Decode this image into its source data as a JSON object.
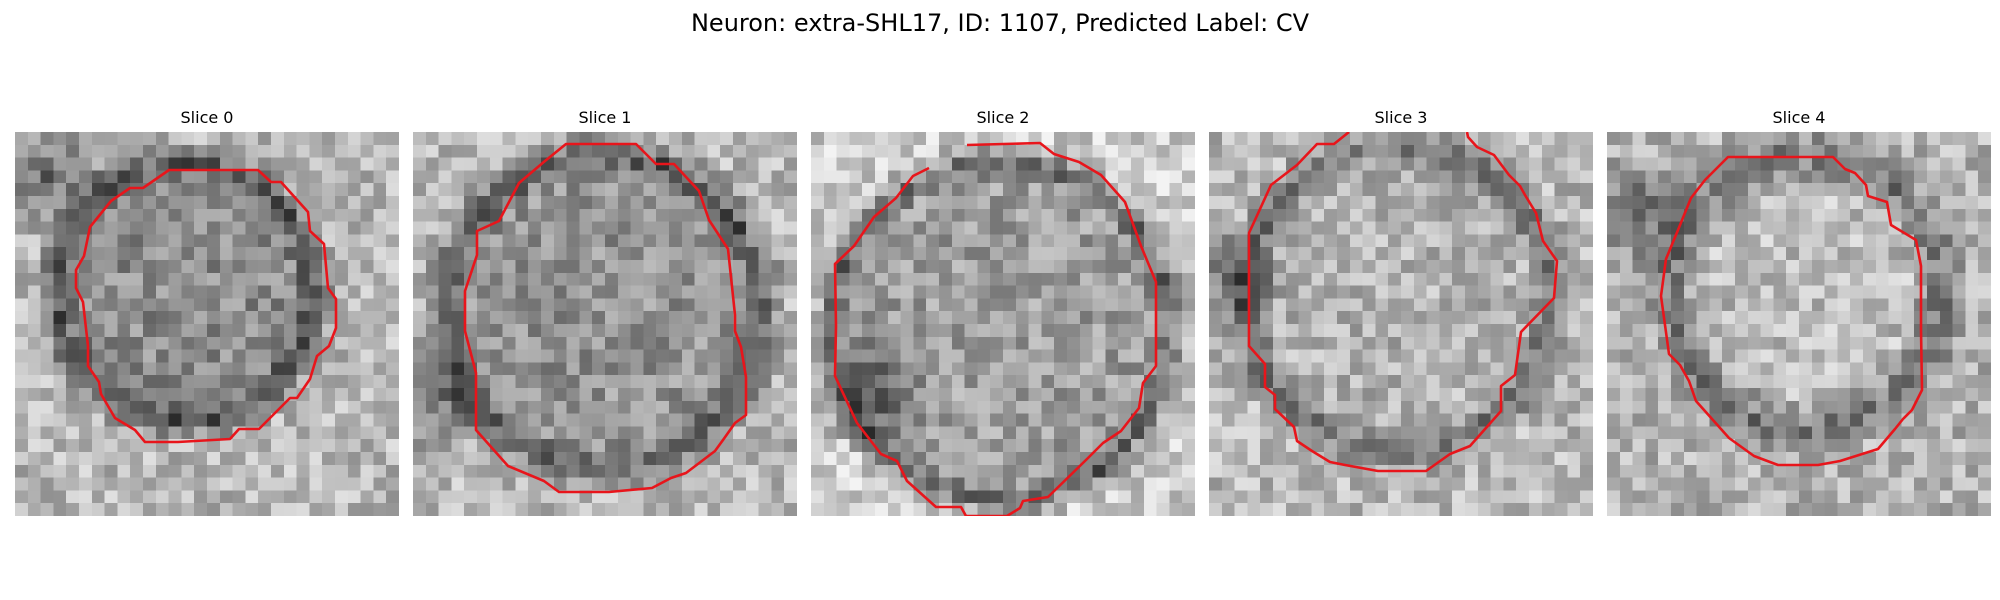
{
  "figure": {
    "title": "Neuron: extra-SHL17, ID: 1107, Predicted Label: CV"
  },
  "colors": {
    "contour": "#e8151b",
    "background": "#ffffff"
  },
  "panels": [
    {
      "title": "Slice 0"
    },
    {
      "title": "Slice 1"
    },
    {
      "title": "Slice 2"
    },
    {
      "title": "Slice 3"
    },
    {
      "title": "Slice 4"
    }
  ]
}
